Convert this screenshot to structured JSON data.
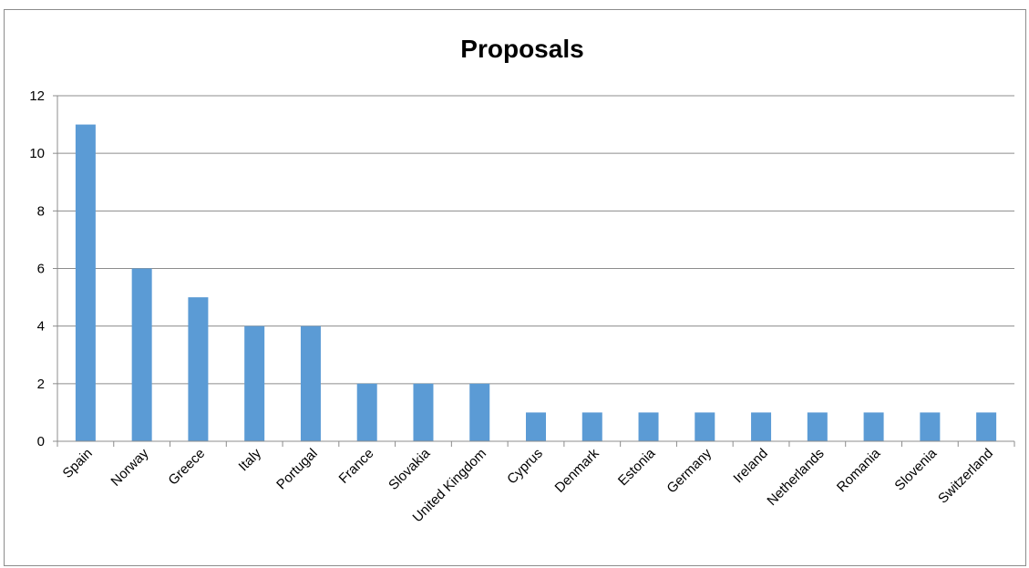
{
  "chart_data": {
    "type": "bar",
    "title": "Proposals",
    "xlabel": "",
    "ylabel": "",
    "categories": [
      "Spain",
      "Norway",
      "Greece",
      "Italy",
      "Portugal",
      "France",
      "Slovakia",
      "United Kingdom",
      "Cyprus",
      "Denmark",
      "Estonia",
      "Germany",
      "Ireland",
      "Netherlands",
      "Romania",
      "Slovenia",
      "Switzerland"
    ],
    "values": [
      11,
      6,
      5,
      4,
      4,
      2,
      2,
      2,
      1,
      1,
      1,
      1,
      1,
      1,
      1,
      1,
      1
    ],
    "ylim": [
      0,
      12
    ],
    "yticks": [
      0,
      2,
      4,
      6,
      8,
      10,
      12
    ],
    "grid": true,
    "legend": "none",
    "colors": {
      "bar": "#5b9bd5",
      "grid": "#8c8c8c",
      "axis": "#8c8c8c"
    }
  }
}
